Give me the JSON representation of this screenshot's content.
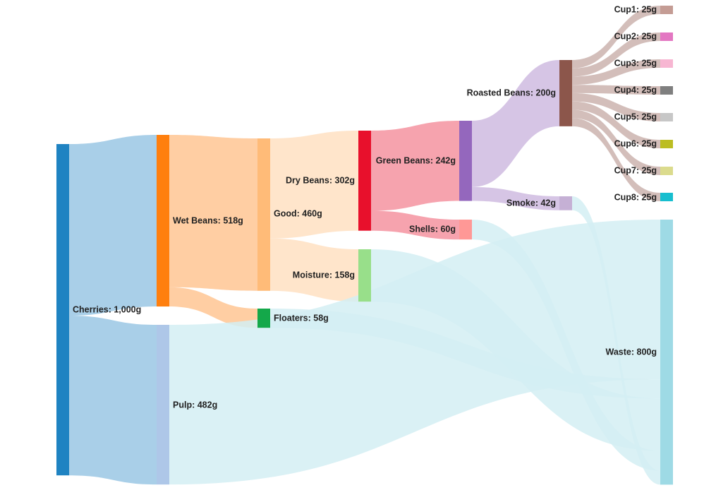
{
  "chart_data": {
    "type": "sankey",
    "unit": "g",
    "nodes": [
      {
        "id": "cherries",
        "label": "Cherries: 1,000g",
        "value": 1000,
        "color": "#1f83c2"
      },
      {
        "id": "wet",
        "label": "Wet Beans: 518g",
        "value": 518,
        "color": "#ff7f0e"
      },
      {
        "id": "pulp",
        "label": "Pulp: 482g",
        "value": 482,
        "color": "#aec7e8"
      },
      {
        "id": "good",
        "label": "Good: 460g",
        "value": 460,
        "color": "#ffbb78"
      },
      {
        "id": "floaters",
        "label": "Floaters: 58g",
        "value": 58,
        "color": "#14a84a"
      },
      {
        "id": "dry",
        "label": "Dry Beans: 302g",
        "value": 302,
        "color": "#e8102c"
      },
      {
        "id": "moisture",
        "label": "Moisture: 158g",
        "value": 158,
        "color": "#98df8a"
      },
      {
        "id": "green",
        "label": "Green Beans: 242g",
        "value": 242,
        "color": "#9467bd"
      },
      {
        "id": "shells",
        "label": "Shells: 60g",
        "value": 60,
        "color": "#ff9896"
      },
      {
        "id": "roasted",
        "label": "Roasted Beans: 200g",
        "value": 200,
        "color": "#8c564b"
      },
      {
        "id": "smoke",
        "label": "Smoke: 42g",
        "value": 42,
        "color": "#c5b0d5"
      },
      {
        "id": "cup1",
        "label": "Cup1: 25g",
        "value": 25,
        "color": "#c49c94"
      },
      {
        "id": "cup2",
        "label": "Cup2: 25g",
        "value": 25,
        "color": "#e377c2"
      },
      {
        "id": "cup3",
        "label": "Cup3: 25g",
        "value": 25,
        "color": "#f7b6d2"
      },
      {
        "id": "cup4",
        "label": "Cup4: 25g",
        "value": 25,
        "color": "#7f7f7f"
      },
      {
        "id": "cup5",
        "label": "Cup5: 25g",
        "value": 25,
        "color": "#c7c7c7"
      },
      {
        "id": "cup6",
        "label": "Cup6: 25g",
        "value": 25,
        "color": "#bcbd22"
      },
      {
        "id": "cup7",
        "label": "Cup7: 25g",
        "value": 25,
        "color": "#dbdb8d"
      },
      {
        "id": "cup8",
        "label": "Cup8: 25g",
        "value": 25,
        "color": "#17becf"
      },
      {
        "id": "waste",
        "label": "Waste: 800g",
        "value": 800,
        "color": "#9edae5"
      }
    ],
    "links": [
      {
        "source": "cherries",
        "target": "wet",
        "value": 518
      },
      {
        "source": "cherries",
        "target": "pulp",
        "value": 482
      },
      {
        "source": "wet",
        "target": "good",
        "value": 460
      },
      {
        "source": "wet",
        "target": "floaters",
        "value": 58
      },
      {
        "source": "good",
        "target": "dry",
        "value": 302
      },
      {
        "source": "good",
        "target": "moisture",
        "value": 158
      },
      {
        "source": "dry",
        "target": "green",
        "value": 242
      },
      {
        "source": "dry",
        "target": "shells",
        "value": 60
      },
      {
        "source": "green",
        "target": "roasted",
        "value": 200
      },
      {
        "source": "green",
        "target": "smoke",
        "value": 42
      },
      {
        "source": "roasted",
        "target": "cup1",
        "value": 25
      },
      {
        "source": "roasted",
        "target": "cup2",
        "value": 25
      },
      {
        "source": "roasted",
        "target": "cup3",
        "value": 25
      },
      {
        "source": "roasted",
        "target": "cup4",
        "value": 25
      },
      {
        "source": "roasted",
        "target": "cup5",
        "value": 25
      },
      {
        "source": "roasted",
        "target": "cup6",
        "value": 25
      },
      {
        "source": "roasted",
        "target": "cup7",
        "value": 25
      },
      {
        "source": "roasted",
        "target": "cup8",
        "value": 25
      },
      {
        "source": "pulp",
        "target": "waste",
        "value": 482
      },
      {
        "source": "floaters",
        "target": "waste",
        "value": 58
      },
      {
        "source": "moisture",
        "target": "waste",
        "value": 158
      },
      {
        "source": "shells",
        "target": "waste",
        "value": 60
      },
      {
        "source": "smoke",
        "target": "waste",
        "value": 42
      }
    ]
  }
}
